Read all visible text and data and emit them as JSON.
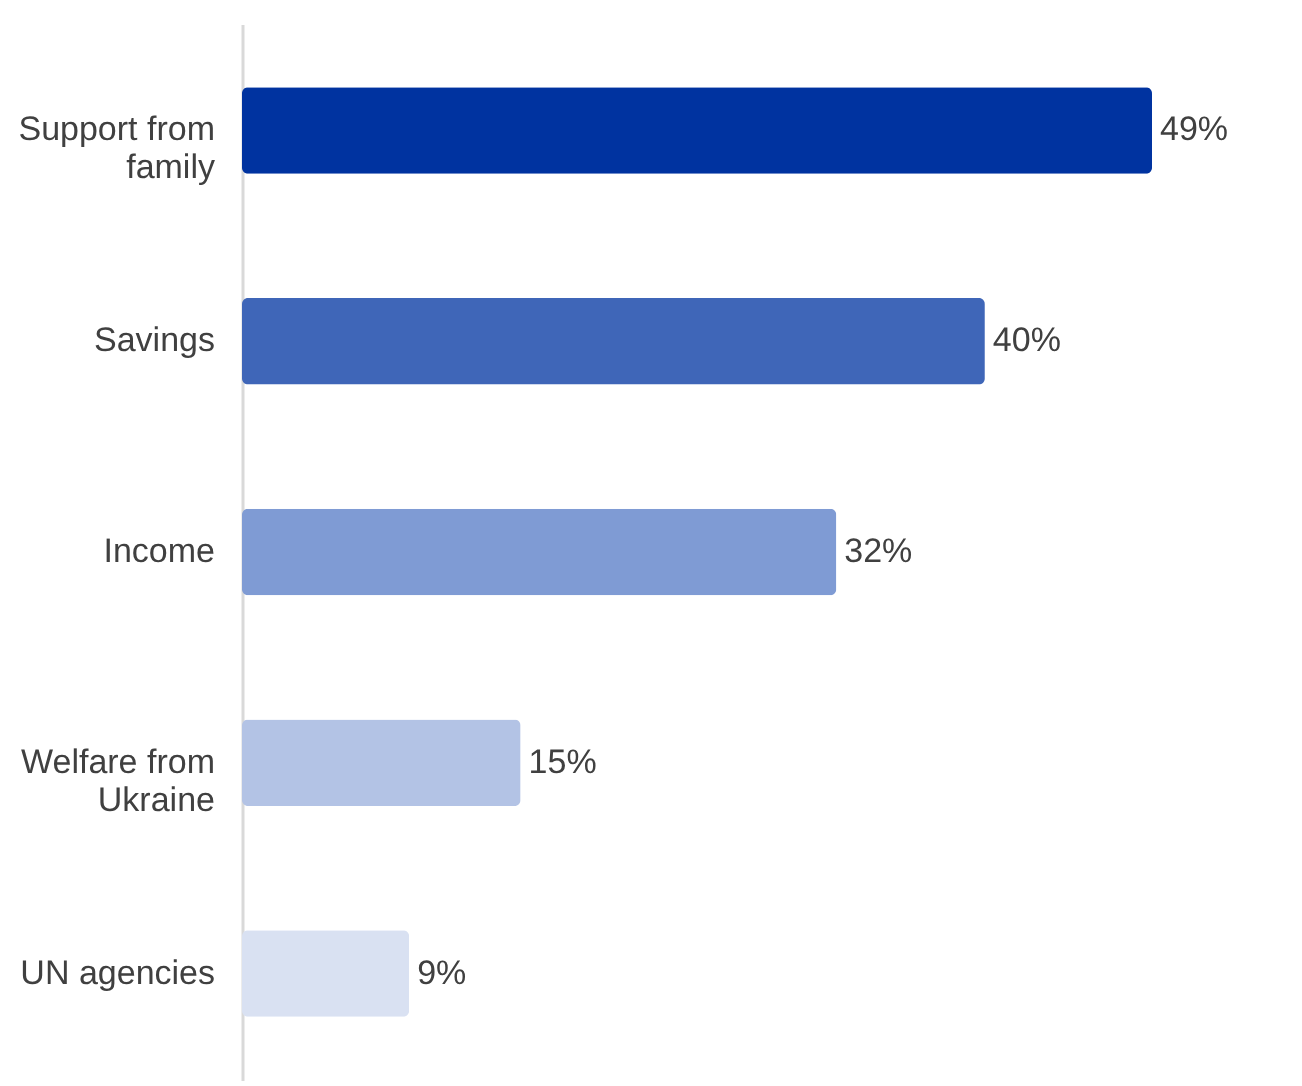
{
  "chart_data": {
    "type": "bar",
    "orientation": "horizontal",
    "categories": [
      "Support from family",
      "Savings",
      "Income",
      "Welfare from Ukraine",
      "UN agencies"
    ],
    "values": [
      49,
      40,
      32,
      15,
      9
    ],
    "colors": [
      "#0033a0",
      "#3f66b8",
      "#7f9bd4",
      "#b3c3e5",
      "#d9e1f2"
    ],
    "value_labels": [
      "49%",
      "40%",
      "32%",
      "15%",
      "9%"
    ]
  }
}
